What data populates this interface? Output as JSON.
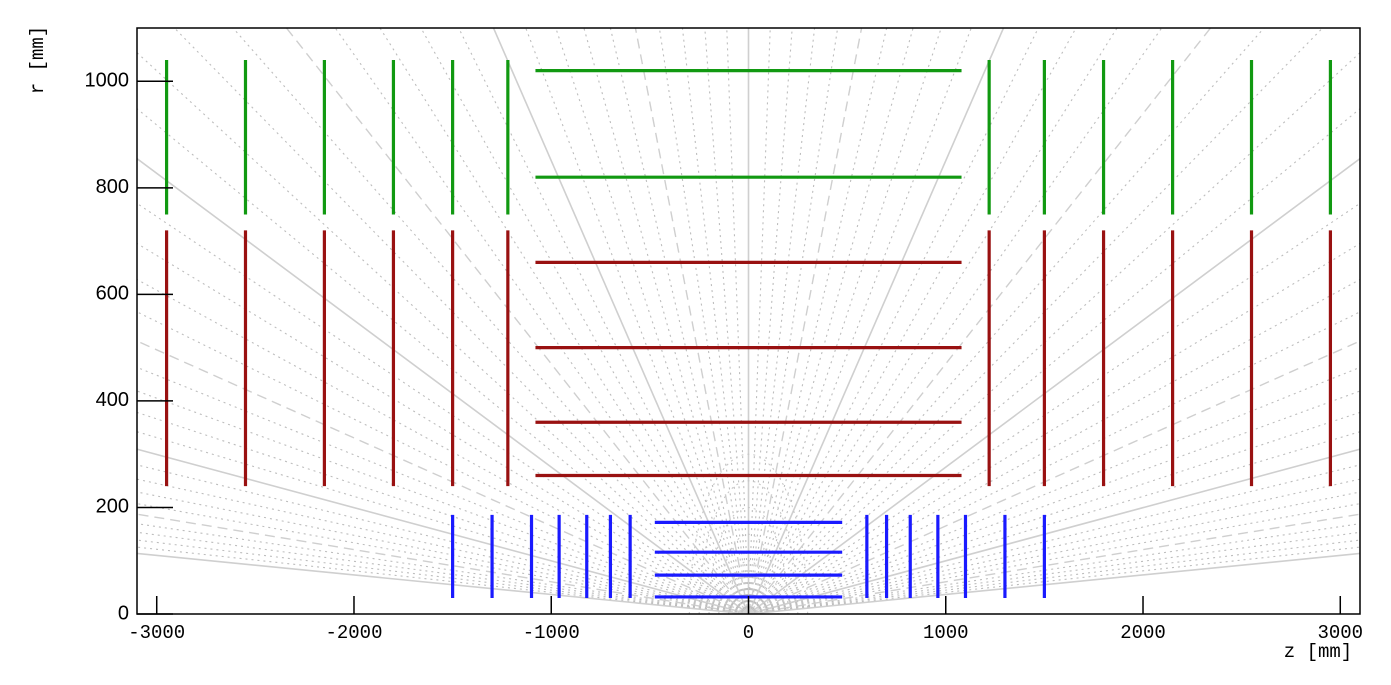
{
  "chart_data": {
    "type": "detector",
    "xlabel": "z [mm]",
    "ylabel": "r [mm]",
    "xlim": [
      -3100,
      3100
    ],
    "ylim": [
      0,
      1100
    ],
    "xticks": [
      -3000,
      -2000,
      -1000,
      0,
      1000,
      2000,
      3000
    ],
    "yticks": [
      0,
      200,
      400,
      600,
      800,
      1000
    ],
    "layers": [
      {
        "color": "#1a1aff",
        "barrel_r": [
          32,
          73,
          116,
          172
        ],
        "barrel_zmin": -475,
        "barrel_zmax": 475,
        "disk_z": [
          -1500,
          -1300,
          -1100,
          -960,
          -820,
          -700,
          -600,
          600,
          700,
          820,
          960,
          1100,
          1300,
          1500
        ],
        "disk_rmin": 30,
        "disk_rmax": 186
      },
      {
        "color": "#991111",
        "barrel_r": [
          260,
          360,
          500,
          660
        ],
        "barrel_zmin": -1080,
        "barrel_zmax": 1080,
        "disk_z": [
          -2950,
          -2550,
          -2150,
          -1800,
          -1500,
          -1220,
          1220,
          1500,
          1800,
          2150,
          2550,
          2950
        ],
        "disk_rmin": 240,
        "disk_rmax": 720
      },
      {
        "color": "#119911",
        "barrel_r": [
          820,
          1020
        ],
        "barrel_zmin": -1080,
        "barrel_zmax": 1080,
        "disk_z": [
          -2950,
          -2550,
          -2150,
          -1800,
          -1500,
          -1220,
          1220,
          1500,
          1800,
          2150,
          2550,
          2950
        ],
        "disk_rmin": 750,
        "disk_rmax": 1040
      }
    ]
  }
}
